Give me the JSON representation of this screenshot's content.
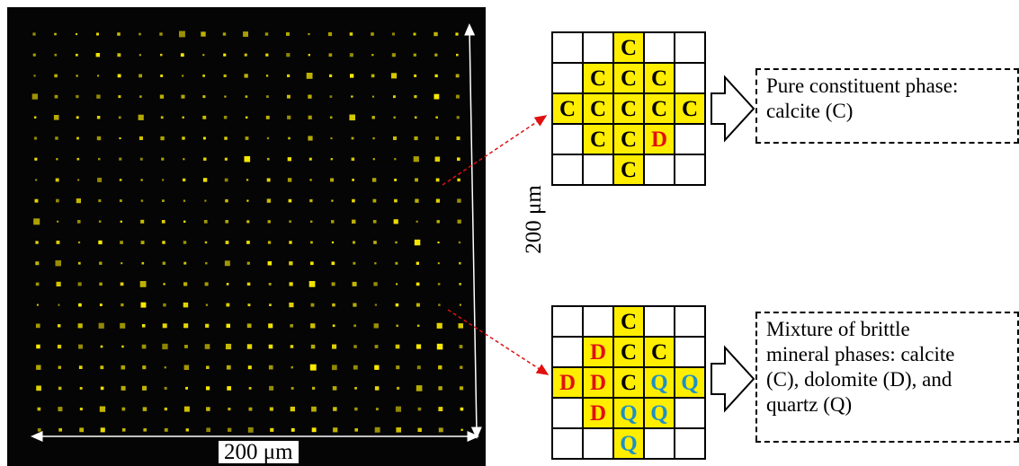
{
  "scale": {
    "x_label": "200 μm",
    "y_label": "200 μm"
  },
  "phase_colors": {
    "C": "#000000",
    "D": "#e01010",
    "Q": "#1e90c8",
    "filled_cell": "#ffee00",
    "marker": "#ffee00"
  },
  "grids": [
    {
      "id": "top",
      "cells": [
        [
          "",
          "",
          "C",
          "",
          ""
        ],
        [
          "",
          "C",
          "C",
          "C",
          ""
        ],
        [
          "C",
          "C",
          "C",
          "C",
          "C"
        ],
        [
          "",
          "C",
          "C",
          "D",
          ""
        ],
        [
          "",
          "",
          "C",
          "",
          ""
        ]
      ]
    },
    {
      "id": "bottom",
      "cells": [
        [
          "",
          "",
          "C",
          "",
          ""
        ],
        [
          "",
          "D",
          "C",
          "C",
          ""
        ],
        [
          "D",
          "D",
          "C",
          "Q",
          "Q"
        ],
        [
          "",
          "D",
          "Q",
          "Q",
          ""
        ],
        [
          "",
          "",
          "Q",
          "",
          ""
        ]
      ]
    }
  ],
  "callouts": {
    "top": [
      "Pure constituent phase:",
      "calcite (C)"
    ],
    "bottom": [
      "Mixture of brittle",
      "mineral phases:  calcite",
      "(C), dolomite (D), and",
      "quartz (Q)"
    ]
  }
}
